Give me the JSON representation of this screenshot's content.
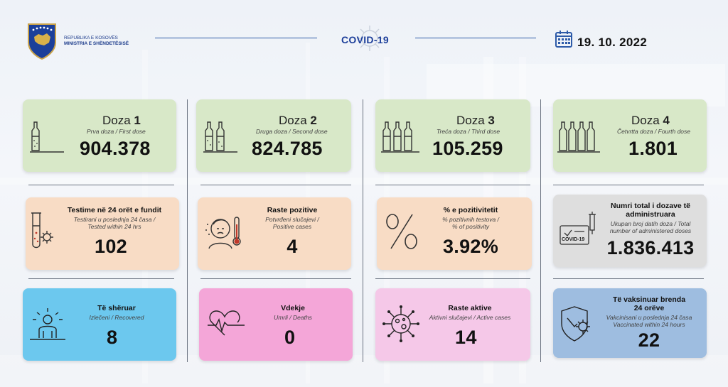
{
  "header": {
    "ministry_line1": "REPUBLIKA E KOSOVËS",
    "ministry_line2": "MINISTRIA E SHËNDETËSISË",
    "covid_label": "COVID",
    "covid_number": "-19",
    "date": "19. 10. 2022"
  },
  "doses": [
    {
      "label": "Doza",
      "num": "1",
      "subtitle": "Prva doza / First dose",
      "value": "904.378"
    },
    {
      "label": "Doza",
      "num": "2",
      "subtitle": "Druga doza / Second dose",
      "value": "824.785"
    },
    {
      "label": "Doza",
      "num": "3",
      "subtitle": "Treća doza / Third dose",
      "value": "105.259"
    },
    {
      "label": "Doza",
      "num": "4",
      "subtitle": "Četvrtta doza / Fourth dose",
      "value": "1.801"
    }
  ],
  "tests": {
    "title": "Testime në 24 orët e fundit",
    "sub1": "Testirani u poslednja 24 časa /",
    "sub2": "Tested within 24 hrs",
    "value": "102"
  },
  "positive": {
    "title": "Raste pozitive",
    "sub1": "Potvrđeni slučajevi /",
    "sub2": "Positive cases",
    "value": "4"
  },
  "positivity": {
    "title": "% e pozitivitetit",
    "sub1": "% pozitivnih testova /",
    "sub2": "% of positivity",
    "value": "3.92%"
  },
  "total_doses": {
    "title1": "Numri total i dozave të",
    "title2": "administruara",
    "sub1": "Ukupan broj datih doza / Total",
    "sub2": "number of administered doses",
    "value": "1.836.413",
    "icon_caption": "COVID-19"
  },
  "recovered": {
    "title": "Të shëruar",
    "sub": "Izlečeni / Recovered",
    "value": "8"
  },
  "deaths": {
    "title": "Vdekje",
    "sub": "Umrli / Deaths",
    "value": "0"
  },
  "active": {
    "title": "Raste aktive",
    "sub": "Aktivni slučajevi / Active cases",
    "value": "14"
  },
  "vaccinated24": {
    "title1": "Të vaksinuar brenda",
    "title2": "24 orëve",
    "sub1": "Vakcinisani u poslednja 24 časa",
    "sub2": "Vaccinated within 24 hours",
    "value": "22"
  }
}
